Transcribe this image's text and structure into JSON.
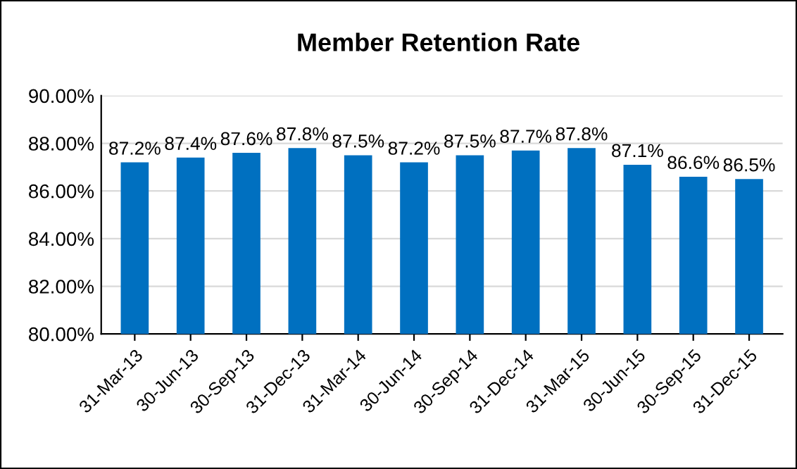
{
  "chart_data": {
    "type": "bar",
    "title": "Member Retention Rate",
    "categories": [
      "31-Mar-13",
      "30-Jun-13",
      "30-Sep-13",
      "31-Dec-13",
      "31-Mar-14",
      "30-Jun-14",
      "30-Sep-14",
      "31-Dec-14",
      "31-Mar-15",
      "30-Jun-15",
      "30-Sep-15",
      "31-Dec-15"
    ],
    "values": [
      87.2,
      87.4,
      87.6,
      87.8,
      87.5,
      87.2,
      87.5,
      87.7,
      87.8,
      87.1,
      86.6,
      86.5
    ],
    "value_labels": [
      "87.2%",
      "87.4%",
      "87.6%",
      "87.8%",
      "87.5%",
      "87.2%",
      "87.5%",
      "87.7%",
      "87.8%",
      "87.1%",
      "86.6%",
      "86.5%"
    ],
    "color": "#0070c0",
    "ylim": [
      80,
      90
    ],
    "yticks": [
      {
        "value": 80,
        "label": "80.00%"
      },
      {
        "value": 82,
        "label": "82.00%"
      },
      {
        "value": 84,
        "label": "84.00%"
      },
      {
        "value": 86,
        "label": "86.00%"
      },
      {
        "value": 88,
        "label": "88.00%"
      },
      {
        "value": 90,
        "label": "90.00%"
      }
    ],
    "grid": "y"
  }
}
